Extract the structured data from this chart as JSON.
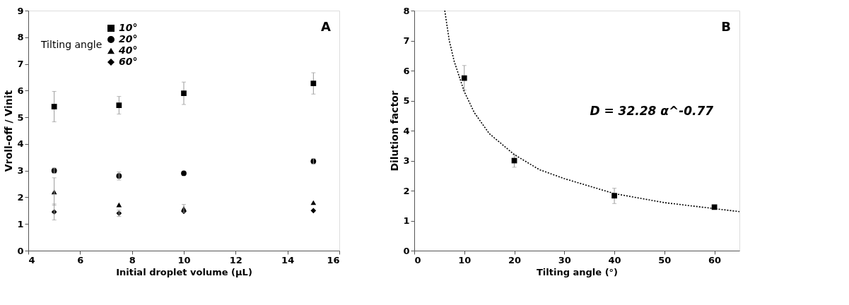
{
  "chart_data": [
    {
      "type": "scatter",
      "xlabel": "Initial droplet volume (μL)",
      "ylabel": "Vroll-off / Vinit",
      "legend_title": "Tilting angle",
      "legend": "top left",
      "grid": false,
      "xlim": [
        4,
        16
      ],
      "xticks": [
        4,
        6,
        8,
        10,
        12,
        14,
        16
      ],
      "ylim": [
        0,
        9
      ],
      "yticks": [
        0,
        1,
        2,
        3,
        4,
        5,
        6,
        7,
        8,
        9
      ],
      "annotations": [
        "A"
      ],
      "series": [
        {
          "name": "10°",
          "color": "#000000",
          "marker": "square",
          "x": [
            5,
            7.5,
            10,
            15
          ],
          "values": [
            5.4,
            5.45,
            5.9,
            6.27
          ],
          "errors": [
            0.57,
            0.33,
            0.42,
            0.4
          ]
        },
        {
          "name": "20°",
          "color": "#000000",
          "marker": "circle",
          "x": [
            5,
            7.5,
            10,
            15
          ],
          "values": [
            3.0,
            2.8,
            2.9,
            3.35
          ],
          "errors": [
            0.1,
            0.15,
            null,
            0.1
          ]
        },
        {
          "name": "40°",
          "color": "#000000",
          "marker": "triangle",
          "x": [
            5,
            7.5,
            10,
            15
          ],
          "values": [
            2.2,
            1.72,
            1.58,
            1.8
          ],
          "errors": [
            [
              1.7,
              2.73
            ],
            null,
            0.15,
            null
          ]
        },
        {
          "name": "60°",
          "color": "#000000",
          "marker": "diamond",
          "x": [
            5,
            7.5,
            10,
            15
          ],
          "values": [
            1.45,
            1.4,
            1.47,
            1.5
          ],
          "errors": [
            0.3,
            0.12,
            null,
            null
          ]
        }
      ]
    },
    {
      "type": "scatter",
      "xlabel": "Tilting angle (°)",
      "ylabel": "Dilution factor",
      "grid": false,
      "xlim": [
        0,
        65
      ],
      "xticks": [
        0,
        10,
        20,
        30,
        40,
        50,
        60
      ],
      "ylim": [
        0,
        8
      ],
      "yticks": [
        0,
        1,
        2,
        3,
        4,
        5,
        6,
        7,
        8
      ],
      "annotations": [
        "B",
        "D = 32.28 α^-0.77"
      ],
      "series": [
        {
          "color": "#000000",
          "marker": "square",
          "x": [
            10,
            20,
            40,
            60
          ],
          "values": [
            5.75,
            3.0,
            1.83,
            1.45
          ],
          "errors": [
            [
              5.35,
              6.17
            ],
            [
              2.78,
              3.2
            ],
            [
              1.57,
              2.08
            ],
            null
          ]
        },
        {
          "type": "line",
          "color": "#000000",
          "marker": "none",
          "line_style": "dotted",
          "x": [
            6.1,
            7,
            8,
            10,
            12,
            15,
            20,
            25,
            30,
            40,
            50,
            60,
            65
          ],
          "values": [
            8.0,
            7.0,
            6.3,
            5.3,
            4.6,
            3.9,
            3.2,
            2.7,
            2.4,
            1.9,
            1.6,
            1.4,
            1.3
          ]
        }
      ]
    }
  ]
}
